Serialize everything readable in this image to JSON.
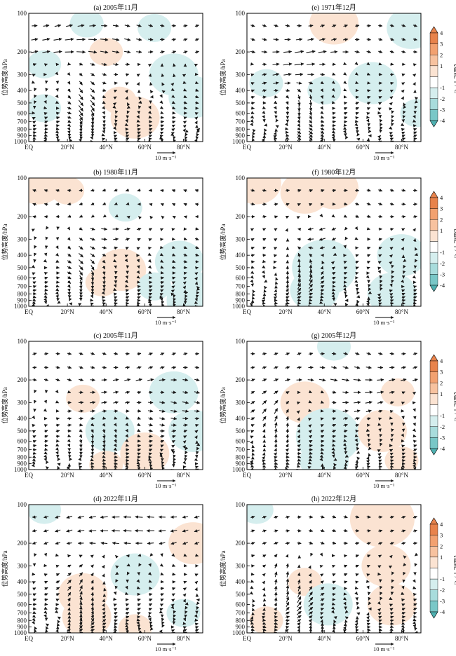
{
  "figure": {
    "vertical_axis_label": "位势高度/hPa",
    "colorbar_label": "气温距平/°C",
    "colorbar_ticks": [
      "4",
      "3",
      "2",
      "1",
      "-1",
      "-2",
      "-3",
      "-4"
    ],
    "reference_vector_label": "10 m·s⁻¹",
    "colors": {
      "warm": [
        "#fbe3d2",
        "#f7c29f",
        "#f2a170",
        "#e8834c"
      ],
      "cool": [
        "#d5eeee",
        "#a8dcdc",
        "#79c7c7",
        "#4eb0b0"
      ],
      "arrow": "#1a1a1a",
      "frame": "#000000"
    }
  },
  "chart_data": [
    {
      "type": "vector-contour",
      "title": "(a) 2005年11月",
      "xlabel": "",
      "ylabel": "位势高度/hPa",
      "x_tick_labels": [
        "EQ",
        "20°N",
        "40°N",
        "60°N",
        "80°N"
      ],
      "x_ticks": [
        0,
        20,
        40,
        60,
        80
      ],
      "xlim": [
        0,
        90
      ],
      "y_tick_labels": [
        "100",
        "200",
        "300",
        "400",
        "500",
        "600",
        "700",
        "800",
        "900",
        "1000"
      ],
      "y_ticks": [
        100,
        200,
        300,
        400,
        500,
        600,
        700,
        800,
        900,
        1000
      ],
      "ylim": [
        1000,
        100
      ],
      "y_scale": "log",
      "colorbar": "气温距平/°C",
      "anomaly_centers": [
        {
          "lat": 55,
          "p": 650,
          "value": 2
        },
        {
          "lat": 47,
          "p": 480,
          "value": 1
        },
        {
          "lat": 40,
          "p": 200,
          "value": 1
        },
        {
          "lat": 8,
          "p": 250,
          "value": -1
        },
        {
          "lat": 8,
          "p": 550,
          "value": -1
        },
        {
          "lat": 75,
          "p": 300,
          "value": -2
        },
        {
          "lat": 85,
          "p": 450,
          "value": -2
        },
        {
          "lat": 65,
          "p": 130,
          "value": -1
        },
        {
          "lat": 30,
          "p": 120,
          "value": -1
        }
      ],
      "wind_features": [
        {
          "lat": 30,
          "p": 550,
          "type": "descent",
          "strength": 1.0,
          "width": 9
        },
        {
          "lat": 25,
          "p": 180,
          "type": "westerly",
          "strength": 0.7,
          "width": 30
        }
      ]
    },
    {
      "type": "vector-contour",
      "title": "(b) 1980年11月",
      "xlabel": "",
      "ylabel": "位势高度/hPa",
      "x_tick_labels": [
        "EQ",
        "20°N",
        "40°N",
        "60°N",
        "80°N"
      ],
      "x_ticks": [
        0,
        20,
        40,
        60,
        80
      ],
      "xlim": [
        0,
        90
      ],
      "y_tick_labels": [
        "100",
        "200",
        "300",
        "400",
        "500",
        "600",
        "700",
        "800",
        "900",
        "1000"
      ],
      "y_ticks": [
        100,
        200,
        300,
        400,
        500,
        600,
        700,
        800,
        900,
        1000
      ],
      "ylim": [
        1000,
        100
      ],
      "y_scale": "log",
      "colorbar": "气温距平/°C",
      "anomaly_centers": [
        {
          "lat": 5,
          "p": 110,
          "value": 2
        },
        {
          "lat": 20,
          "p": 125,
          "value": 1
        },
        {
          "lat": 48,
          "p": 520,
          "value": 2
        },
        {
          "lat": 38,
          "p": 650,
          "value": 1
        },
        {
          "lat": 78,
          "p": 450,
          "value": -2
        },
        {
          "lat": 65,
          "p": 700,
          "value": -1
        },
        {
          "lat": 50,
          "p": 170,
          "value": -1
        },
        {
          "lat": 88,
          "p": 900,
          "value": -3
        }
      ],
      "wind_features": [
        {
          "lat": 30,
          "p": 500,
          "type": "descent",
          "strength": 0.8,
          "width": 12
        },
        {
          "lat": 55,
          "p": 250,
          "type": "westerly",
          "strength": 0.5,
          "width": 25
        }
      ]
    },
    {
      "type": "vector-contour",
      "title": "(c) 2005年11月",
      "xlabel": "",
      "ylabel": "位势高度/hPa",
      "x_tick_labels": [
        "EQ",
        "20°N",
        "40°N",
        "60°N",
        "80°N"
      ],
      "x_ticks": [
        0,
        20,
        40,
        60,
        80
      ],
      "xlim": [
        0,
        90
      ],
      "y_tick_labels": [
        "100",
        "200",
        "300",
        "400",
        "500",
        "600",
        "700",
        "800",
        "900",
        "1000"
      ],
      "y_ticks": [
        100,
        200,
        300,
        400,
        500,
        600,
        700,
        800,
        900,
        1000
      ],
      "ylim": [
        1000,
        100
      ],
      "y_scale": "log",
      "colorbar": "气温距平/°C",
      "anomaly_centers": [
        {
          "lat": 28,
          "p": 280,
          "value": 1
        },
        {
          "lat": 42,
          "p": 500,
          "value": -2
        },
        {
          "lat": 75,
          "p": 250,
          "value": -2
        },
        {
          "lat": 85,
          "p": 500,
          "value": -2
        },
        {
          "lat": 60,
          "p": 750,
          "value": 2
        },
        {
          "lat": 40,
          "p": 920,
          "value": 1
        }
      ],
      "wind_features": [
        {
          "lat": 35,
          "p": 600,
          "type": "descent",
          "strength": 0.5,
          "width": 14
        },
        {
          "lat": 60,
          "p": 300,
          "type": "westerly",
          "strength": 0.7,
          "width": 30
        }
      ]
    },
    {
      "type": "vector-contour",
      "title": "(d) 2022年11月",
      "xlabel": "",
      "ylabel": "位势高度/hPa",
      "x_tick_labels": [
        "EQ",
        "20°N",
        "40°N",
        "60°N",
        "80°N"
      ],
      "x_ticks": [
        0,
        20,
        40,
        60,
        80
      ],
      "xlim": [
        0,
        90
      ],
      "y_tick_labels": [
        "100",
        "200",
        "300",
        "400",
        "500",
        "600",
        "700",
        "800",
        "900",
        "1000"
      ],
      "y_ticks": [
        100,
        200,
        300,
        400,
        500,
        600,
        700,
        800,
        900,
        1000
      ],
      "ylim": [
        1000,
        100
      ],
      "y_scale": "log",
      "colorbar": "气温距平/°C",
      "anomaly_centers": [
        {
          "lat": 28,
          "p": 500,
          "value": 2
        },
        {
          "lat": 30,
          "p": 750,
          "value": 2
        },
        {
          "lat": 85,
          "p": 200,
          "value": 2
        },
        {
          "lat": 8,
          "p": 110,
          "value": -1
        },
        {
          "lat": 55,
          "p": 350,
          "value": -2
        },
        {
          "lat": 80,
          "p": 700,
          "value": -1
        },
        {
          "lat": 55,
          "p": 920,
          "value": 1
        }
      ],
      "wind_features": [
        {
          "lat": 28,
          "p": 550,
          "type": "ascent",
          "strength": 0.9,
          "width": 10
        },
        {
          "lat": 50,
          "p": 150,
          "type": "easterly",
          "strength": 0.6,
          "width": 35
        }
      ]
    },
    {
      "type": "vector-contour",
      "title": "(e) 1971年12月",
      "xlabel": "",
      "ylabel": "位势高度/hPa",
      "x_tick_labels": [
        "EQ",
        "20°N",
        "40°N",
        "60°N",
        "80°N"
      ],
      "x_ticks": [
        0,
        20,
        40,
        60,
        80
      ],
      "xlim": [
        0,
        90
      ],
      "y_tick_labels": [
        "100",
        "200",
        "300",
        "400",
        "500",
        "600",
        "700",
        "800",
        "900",
        "1000"
      ],
      "y_ticks": [
        100,
        200,
        300,
        400,
        500,
        600,
        700,
        800,
        900,
        1000
      ],
      "ylim": [
        1000,
        100
      ],
      "y_scale": "log",
      "colorbar": "气温距平/°C",
      "anomaly_centers": [
        {
          "lat": 45,
          "p": 120,
          "value": 2
        },
        {
          "lat": 10,
          "p": 350,
          "value": -1
        },
        {
          "lat": 40,
          "p": 400,
          "value": -1
        },
        {
          "lat": 65,
          "p": 350,
          "value": -2
        },
        {
          "lat": 85,
          "p": 130,
          "value": -2
        },
        {
          "lat": 88,
          "p": 600,
          "value": -1
        }
      ],
      "wind_features": [
        {
          "lat": 30,
          "p": 600,
          "type": "descent",
          "strength": 0.7,
          "width": 10
        },
        {
          "lat": 30,
          "p": 250,
          "type": "westerly",
          "strength": 0.9,
          "width": 20
        }
      ]
    },
    {
      "type": "vector-contour",
      "title": "(f) 1980年12月",
      "xlabel": "",
      "ylabel": "位势高度/hPa",
      "x_tick_labels": [
        "EQ",
        "20°N",
        "40°N",
        "60°N",
        "80°N"
      ],
      "x_ticks": [
        0,
        20,
        40,
        60,
        80
      ],
      "xlim": [
        0,
        90
      ],
      "y_tick_labels": [
        "100",
        "200",
        "300",
        "400",
        "500",
        "600",
        "700",
        "800",
        "900",
        "1000"
      ],
      "y_ticks": [
        100,
        200,
        300,
        400,
        500,
        600,
        700,
        800,
        900,
        1000
      ],
      "ylim": [
        1000,
        100
      ],
      "y_scale": "log",
      "colorbar": "气温距平/°C",
      "anomaly_centers": [
        {
          "lat": 5,
          "p": 110,
          "value": 2
        },
        {
          "lat": 30,
          "p": 130,
          "value": 2
        },
        {
          "lat": 45,
          "p": 120,
          "value": 2
        },
        {
          "lat": 40,
          "p": 500,
          "value": -3
        },
        {
          "lat": 35,
          "p": 750,
          "value": -2
        },
        {
          "lat": 80,
          "p": 400,
          "value": -2
        },
        {
          "lat": 75,
          "p": 800,
          "value": -2
        }
      ],
      "wind_features": [
        {
          "lat": 28,
          "p": 500,
          "type": "ascent",
          "strength": 1.0,
          "width": 10
        },
        {
          "lat": 35,
          "p": 280,
          "type": "easterly",
          "strength": 0.8,
          "width": 15
        }
      ]
    },
    {
      "type": "vector-contour",
      "title": "(g) 2005年12月",
      "xlabel": "",
      "ylabel": "位势高度/hPa",
      "x_tick_labels": [
        "EQ",
        "20°N",
        "40°N",
        "60°N",
        "80°N"
      ],
      "x_ticks": [
        0,
        20,
        40,
        60,
        80
      ],
      "xlim": [
        0,
        90
      ],
      "y_tick_labels": [
        "100",
        "200",
        "300",
        "400",
        "500",
        "600",
        "700",
        "800",
        "900",
        "1000"
      ],
      "y_ticks": [
        100,
        200,
        300,
        400,
        500,
        600,
        700,
        800,
        900,
        1000
      ],
      "ylim": [
        1000,
        100
      ],
      "y_scale": "log",
      "colorbar": "气温距平/°C",
      "anomaly_centers": [
        {
          "lat": 30,
          "p": 300,
          "value": 2
        },
        {
          "lat": 42,
          "p": 550,
          "value": -3
        },
        {
          "lat": 40,
          "p": 850,
          "value": -2
        },
        {
          "lat": 70,
          "p": 500,
          "value": 2
        },
        {
          "lat": 78,
          "p": 250,
          "value": 1
        },
        {
          "lat": 80,
          "p": 850,
          "value": 1
        },
        {
          "lat": 45,
          "p": 110,
          "value": -1
        }
      ],
      "wind_features": [
        {
          "lat": 15,
          "p": 400,
          "type": "ascent",
          "strength": 0.9,
          "width": 12
        },
        {
          "lat": 55,
          "p": 250,
          "type": "westerly",
          "strength": 0.6,
          "width": 30
        }
      ]
    },
    {
      "type": "vector-contour",
      "title": "(h) 2022年12月",
      "xlabel": "",
      "ylabel": "位势高度/hPa",
      "x_tick_labels": [
        "EQ",
        "20°N",
        "40°N",
        "60°N",
        "80°N"
      ],
      "x_ticks": [
        0,
        20,
        40,
        60,
        80
      ],
      "xlim": [
        0,
        90
      ],
      "y_tick_labels": [
        "100",
        "200",
        "300",
        "400",
        "500",
        "600",
        "700",
        "800",
        "900",
        "1000"
      ],
      "y_ticks": [
        100,
        200,
        300,
        400,
        500,
        600,
        700,
        800,
        900,
        1000
      ],
      "ylim": [
        1000,
        100
      ],
      "y_scale": "log",
      "colorbar": "气温距平/°C",
      "anomaly_centers": [
        {
          "lat": 70,
          "p": 130,
          "value": 3
        },
        {
          "lat": 72,
          "p": 300,
          "value": 2
        },
        {
          "lat": 75,
          "p": 600,
          "value": 2
        },
        {
          "lat": 30,
          "p": 400,
          "value": 1
        },
        {
          "lat": 42,
          "p": 600,
          "value": -2
        },
        {
          "lat": 5,
          "p": 110,
          "value": -1
        },
        {
          "lat": 10,
          "p": 800,
          "value": 1
        }
      ],
      "wind_features": [
        {
          "lat": 18,
          "p": 350,
          "type": "ascent",
          "strength": 0.9,
          "width": 10
        },
        {
          "lat": 30,
          "p": 650,
          "type": "ascent",
          "strength": 0.6,
          "width": 10
        }
      ]
    }
  ]
}
